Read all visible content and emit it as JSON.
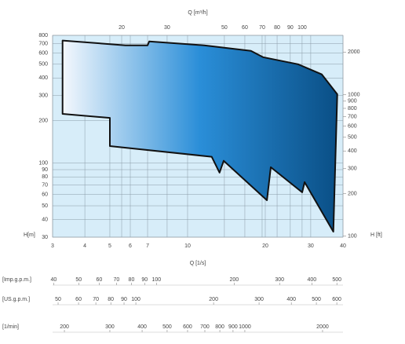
{
  "chart_data": {
    "type": "area",
    "x_label": "Q [1/s]",
    "y_label": "H[m]",
    "y2_label": "H [ft]",
    "x2_label": "Q [m³/h]",
    "x": [
      3.28,
      5.75,
      7.0,
      7.1,
      11.6,
      17.6,
      19.6,
      26.8,
      33.1,
      38.0,
      36.7,
      28.4,
      27.8,
      21.0,
      20.3,
      13.8,
      13.3,
      12.4,
      5.0,
      5.0,
      3.28
    ],
    "values": [
      735,
      680,
      680,
      724,
      680,
      622,
      561,
      500,
      424,
      307,
      32.8,
      73.5,
      62.2,
      93.6,
      54.7,
      104,
      85.7,
      111,
      132,
      209,
      223
    ],
    "colors": [
      "#f4f8fd",
      "#2a8ed8",
      "#0a4f86"
    ],
    "log_x": true,
    "log_y": true,
    "grid": true,
    "xlim": [
      3,
      40
    ],
    "xticks": [
      3,
      4,
      5,
      6,
      7,
      10,
      20,
      30,
      40
    ],
    "x2lim": [
      10.8,
      144
    ],
    "x2ticks": [
      20,
      30,
      50,
      60,
      70,
      80,
      90,
      100
    ],
    "ylim": [
      30,
      800
    ],
    "yticks": [
      30,
      40,
      50,
      60,
      70,
      80,
      90,
      100,
      200,
      300,
      400,
      500,
      600,
      700,
      800
    ],
    "y2lim": [
      98.4,
      2625
    ],
    "y2ticks": [
      100,
      200,
      300,
      400,
      500,
      600,
      700,
      800,
      900,
      1000,
      2000
    ],
    "extra_scales": [
      {
        "label": "[Imp.g.p.m.]",
        "lim": [
          39.6,
          528
        ],
        "ticks": [
          40,
          50,
          60,
          70,
          80,
          90,
          100,
          200,
          300,
          400,
          500
        ]
      },
      {
        "label": "[US.g.p.m.]",
        "lim": [
          47.6,
          634
        ],
        "ticks": [
          50,
          60,
          70,
          80,
          90,
          100,
          200,
          300,
          400,
          500,
          600
        ]
      },
      {
        "label": "[1/min]",
        "lim": [
          180,
          2400
        ],
        "ticks": [
          200,
          300,
          400,
          500,
          600,
          700,
          800,
          900,
          1000,
          2000
        ]
      }
    ]
  }
}
